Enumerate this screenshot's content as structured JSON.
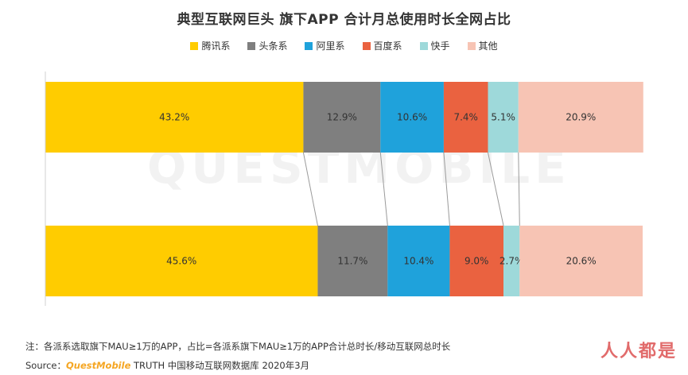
{
  "chart_data": {
    "type": "bar",
    "orientation": "horizontal-stacked",
    "title": "典型互联网巨头 旗下APP 合计月总使用时长全网占比",
    "legend_position": "top",
    "grid": false,
    "xlim": [
      0,
      100
    ],
    "categories": [
      "",
      ""
    ],
    "series": [
      {
        "name": "腾讯系",
        "color": "#FFCC00",
        "values": [
          43.2,
          45.6
        ],
        "labels": [
          "43.2%",
          "45.6%"
        ]
      },
      {
        "name": "头条系",
        "color": "#7F7F7F",
        "values": [
          12.9,
          11.7
        ],
        "labels": [
          "12.9%",
          "11.7%"
        ]
      },
      {
        "name": "阿里系",
        "color": "#1FA2DB",
        "values": [
          10.6,
          10.4
        ],
        "labels": [
          "10.6%",
          "10.4%"
        ]
      },
      {
        "name": "百度系",
        "color": "#EA6240",
        "values": [
          7.4,
          9.0
        ],
        "labels": [
          "7.4%",
          "9.0%"
        ]
      },
      {
        "name": "快手",
        "color": "#9ED9DA",
        "values": [
          5.1,
          2.7
        ],
        "labels": [
          "5.1%",
          "2.7%"
        ]
      },
      {
        "name": "其他",
        "color": "#F7C4B4",
        "values": [
          20.9,
          20.6
        ],
        "labels": [
          "20.9%",
          "20.6%"
        ]
      }
    ]
  },
  "watermark": "QUESTMOBILE",
  "footer": {
    "note": "注：各派系选取旗下MAU≥1万的APP，占比=各派系旗下MAU≥1万的APP合计总时长/移动互联网总时长",
    "source_label": "Source：",
    "source_brand": "QuestMobile",
    "source_rest": " TRUTH 中国移动互联网数据库 2020年3月"
  },
  "corner_logo": "人人都是"
}
